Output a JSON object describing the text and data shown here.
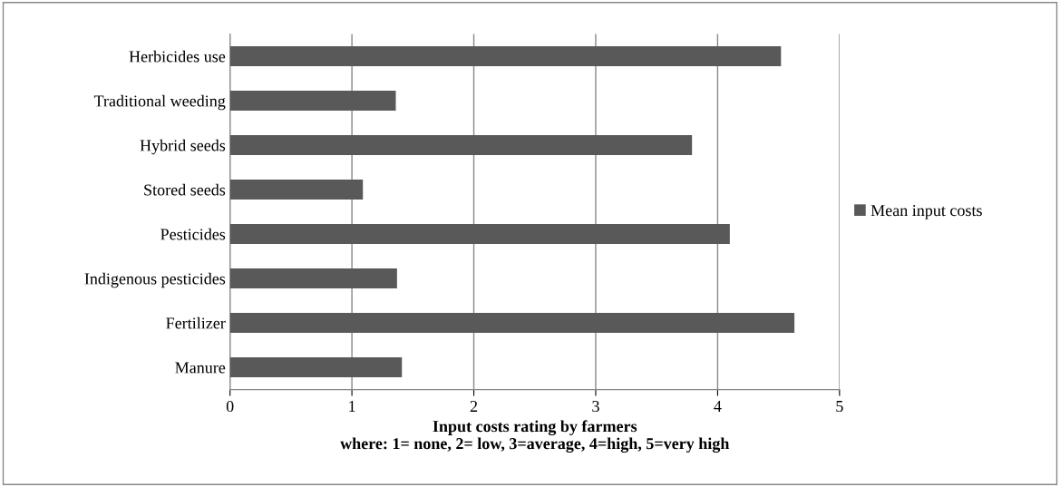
{
  "chart_data": {
    "type": "bar",
    "orientation": "horizontal",
    "categories": [
      "Herbicides use",
      "Traditional weeding",
      "Hybrid seeds",
      "Stored seeds",
      "Pesticides",
      "Indigenous pesticides",
      "Fertilizer",
      "Manure"
    ],
    "series": [
      {
        "name": "Mean input costs",
        "color": "#595959",
        "values": [
          4.52,
          1.36,
          3.79,
          1.09,
          4.1,
          1.37,
          4.63,
          1.41
        ]
      }
    ],
    "xlim": [
      0,
      5
    ],
    "xticks": [
      0,
      1,
      2,
      3,
      4,
      5
    ],
    "xlabel": "Input costs rating by farmers\nwhere: 1= none, 2= low, 3=average, 4=high, 5=very high",
    "grid": "x",
    "legend": "right"
  }
}
